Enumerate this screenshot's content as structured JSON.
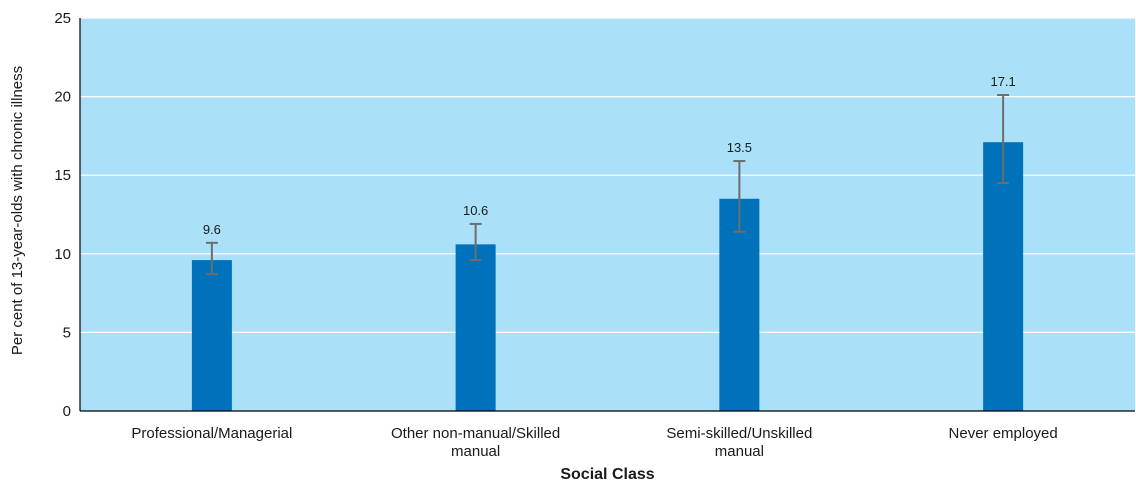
{
  "chart_data": {
    "type": "bar",
    "title": "",
    "xlabel": "Social Class",
    "ylabel": "Per cent of 13-year-olds with chronic illness",
    "ylim": [
      0,
      25
    ],
    "yticks": [
      0,
      5,
      10,
      15,
      20,
      25
    ],
    "grid": true,
    "categories": [
      [
        "Professional/Managerial"
      ],
      [
        "Other non-manual/Skilled",
        "manual"
      ],
      [
        "Semi-skilled/Unskilled",
        "manual"
      ],
      [
        "Never employed"
      ]
    ],
    "values": [
      9.6,
      10.6,
      13.5,
      17.1
    ],
    "value_labels": [
      "9.6",
      "10.6",
      "13.5",
      "17.1"
    ],
    "error_low": [
      8.7,
      9.6,
      11.4,
      14.5
    ],
    "error_high": [
      10.7,
      11.9,
      15.9,
      20.1
    ],
    "colors": {
      "bar": "#0072bc",
      "plot_background": "#abe0f9",
      "gridline": "#ffffff",
      "error_bar": "#6d6d6d",
      "axis": "#000000"
    }
  }
}
